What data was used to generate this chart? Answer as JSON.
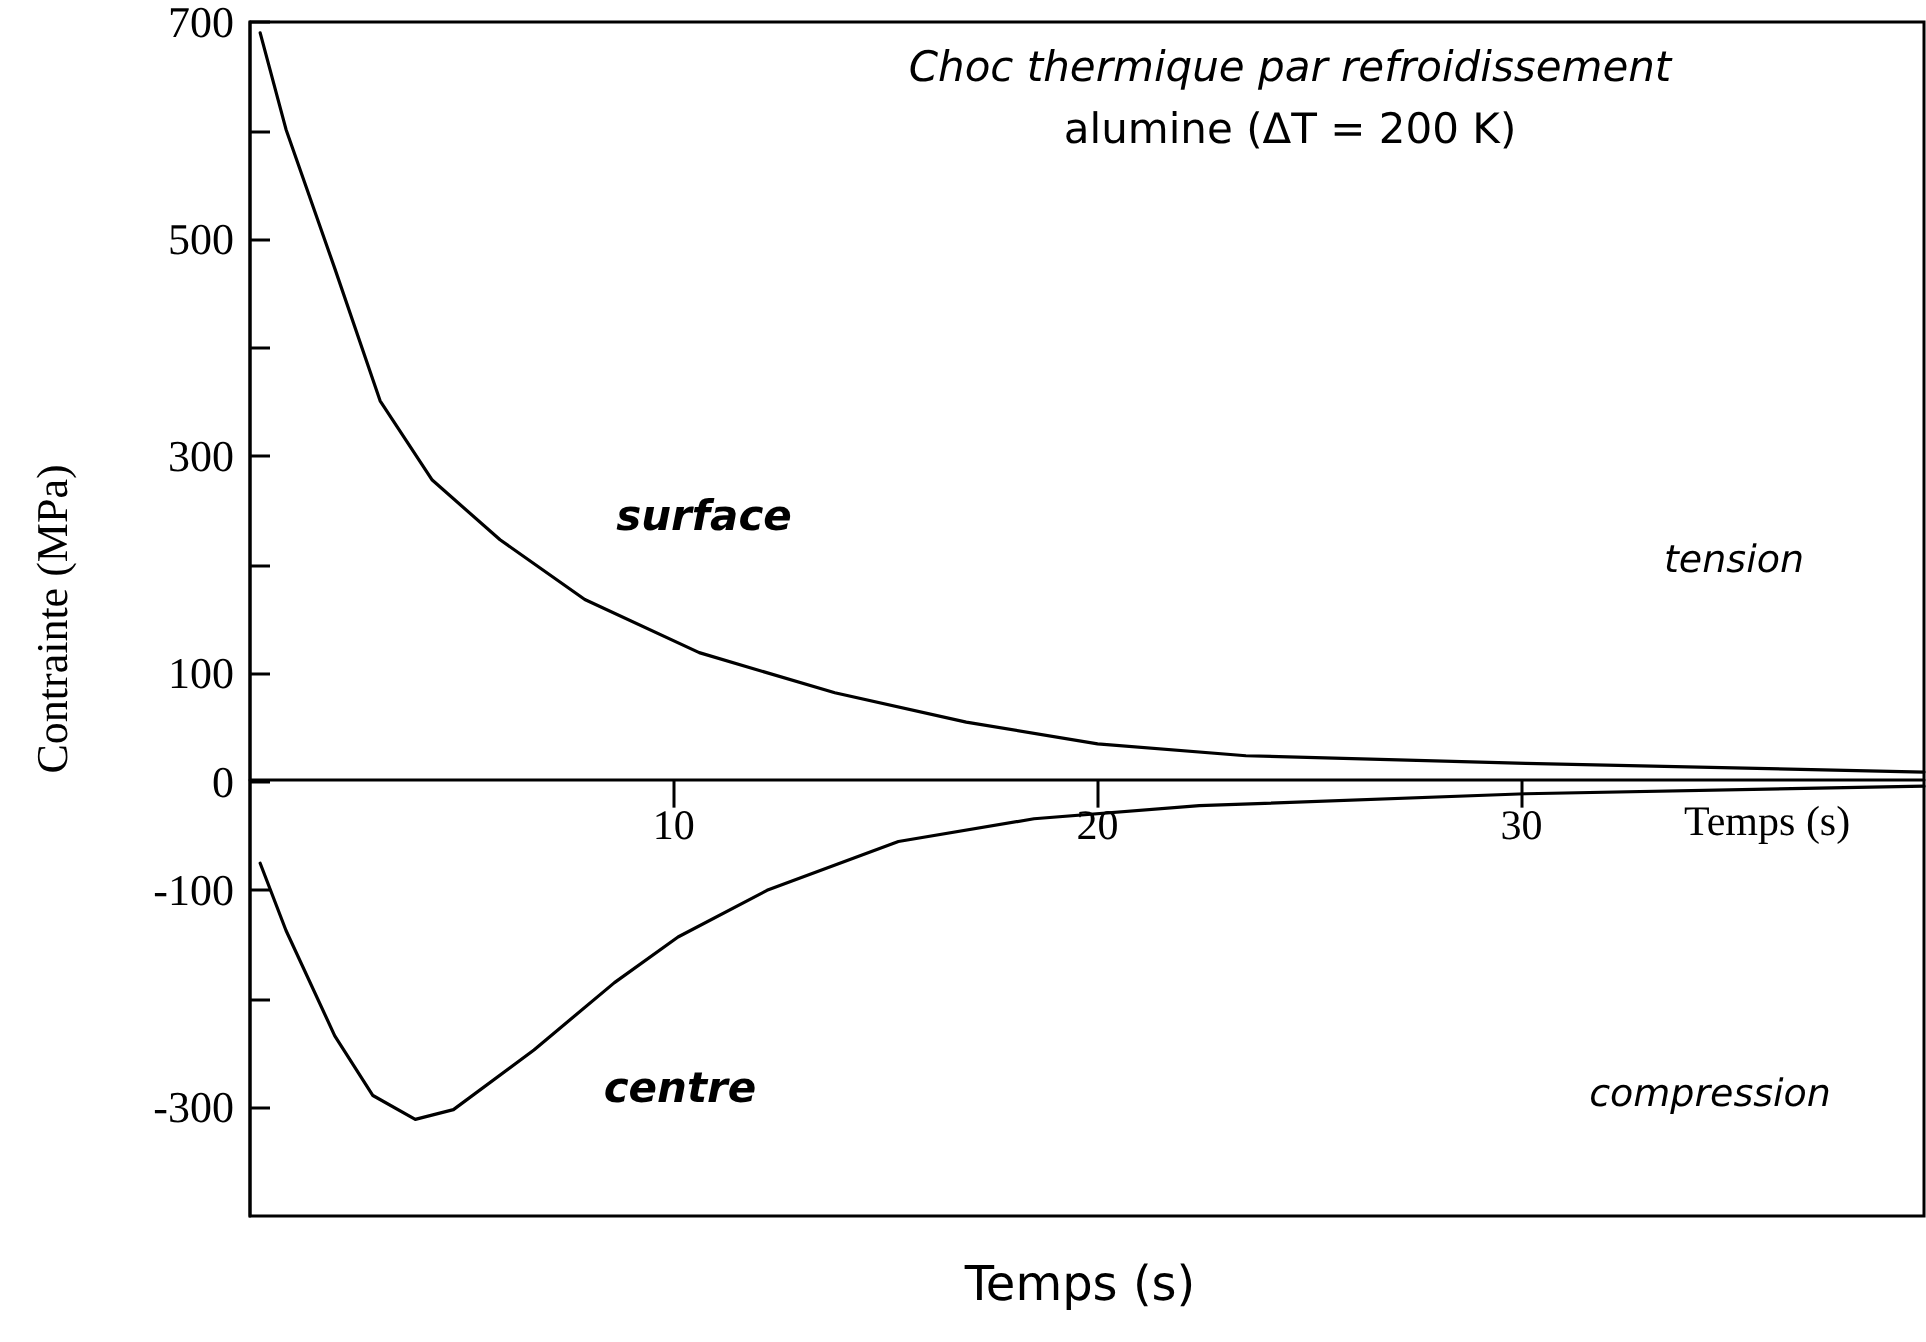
{
  "chart_data": {
    "type": "line",
    "title": "Choc thermique par refroidissement",
    "subtitle": "alumine (ΔT = 200 K)",
    "xlabel": "Temps (s)",
    "ylabel": "Contrainte (MPa)",
    "xlim": [
      0,
      39.5
    ],
    "xticks": [
      10,
      20,
      30
    ],
    "ylim": [
      -400,
      700
    ],
    "yticks": [
      700,
      {
        "value": 600,
        "label": null
      },
      500,
      {
        "value": 400,
        "label": null
      },
      300,
      {
        "value": 200,
        "label": null
      },
      100,
      0,
      -100,
      {
        "value": -200,
        "label": null
      },
      -300
    ],
    "marker": "none",
    "line_style": "solid",
    "series": [
      {
        "color": "#000000",
        "x": [
          0.24,
          0.85,
          2.0,
          3.07,
          4.3,
          5.9,
          7.9,
          10.6,
          13.8,
          16.9,
          20.0,
          23.5,
          30.1,
          39.5
        ],
        "values": [
          690,
          601,
          473,
          351,
          278,
          223,
          168,
          119,
          82,
          55,
          35,
          24,
          17,
          9
        ]
      },
      {
        "color": "#000000",
        "x": [
          0.24,
          0.85,
          2.0,
          2.9,
          3.9,
          4.8,
          6.7,
          8.6,
          10.1,
          12.2,
          15.3,
          18.5,
          22.4,
          30.1,
          39.5
        ],
        "values": [
          -75,
          -137,
          -234,
          -289,
          -311,
          -302,
          -247,
          -185,
          -143,
          -100,
          -55,
          -34,
          -22,
          -11,
          -4
        ]
      }
    ],
    "annotations": [
      "surface",
      "centre",
      "tension",
      "compression",
      "Temps (s)"
    ]
  }
}
